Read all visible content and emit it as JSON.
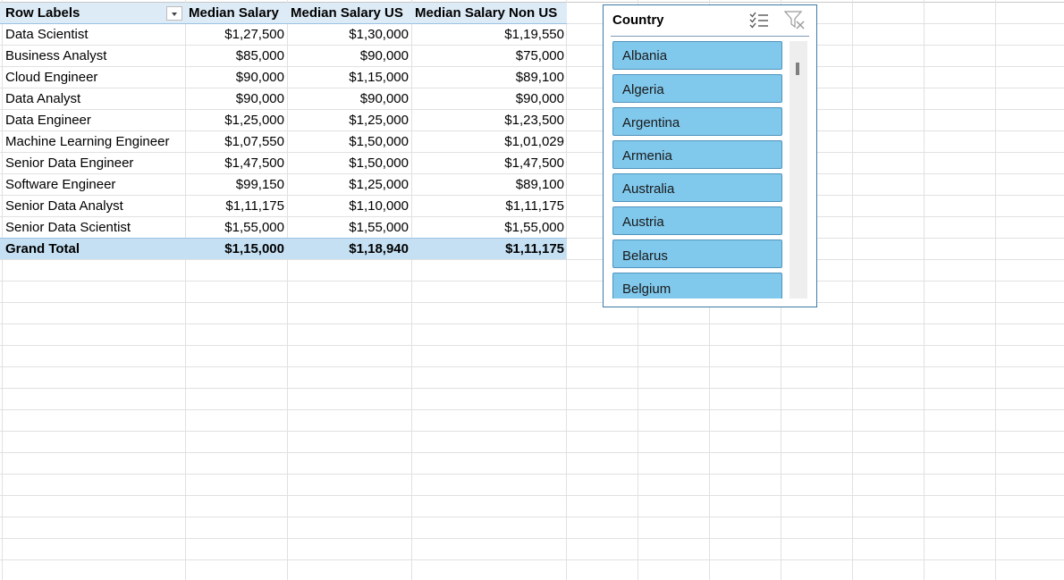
{
  "pivot": {
    "headers": {
      "row_labels": "Row Labels",
      "median_salary": "Median Salary",
      "median_salary_us": "Median Salary US",
      "median_salary_non_us": "Median Salary Non US"
    },
    "rows": [
      {
        "label": "Data Scientist",
        "median": "$1,27,500",
        "us": "$1,30,000",
        "non_us": "$1,19,550"
      },
      {
        "label": "Business Analyst",
        "median": "$85,000",
        "us": "$90,000",
        "non_us": "$75,000"
      },
      {
        "label": "Cloud Engineer",
        "median": "$90,000",
        "us": "$1,15,000",
        "non_us": "$89,100"
      },
      {
        "label": "Data Analyst",
        "median": "$90,000",
        "us": "$90,000",
        "non_us": "$90,000"
      },
      {
        "label": "Data Engineer",
        "median": "$1,25,000",
        "us": "$1,25,000",
        "non_us": "$1,23,500"
      },
      {
        "label": "Machine Learning Engineer",
        "median": "$1,07,550",
        "us": "$1,50,000",
        "non_us": "$1,01,029"
      },
      {
        "label": "Senior Data Engineer",
        "median": "$1,47,500",
        "us": "$1,50,000",
        "non_us": "$1,47,500"
      },
      {
        "label": "Software Engineer",
        "median": "$99,150",
        "us": "$1,25,000",
        "non_us": "$89,100"
      },
      {
        "label": "Senior Data Analyst",
        "median": "$1,11,175",
        "us": "$1,10,000",
        "non_us": "$1,11,175"
      },
      {
        "label": "Senior Data Scientist",
        "median": "$1,55,000",
        "us": "$1,55,000",
        "non_us": "$1,55,000"
      }
    ],
    "total": {
      "label": "Grand Total",
      "median": "$1,15,000",
      "us": "$1,18,940",
      "non_us": "$1,11,175"
    }
  },
  "slicer": {
    "title": "Country",
    "multiselect_icon": "multi-select-icon",
    "clear_filter_icon": "clear-filter-icon",
    "items": [
      "Albania",
      "Algeria",
      "Argentina",
      "Armenia",
      "Australia",
      "Austria",
      "Belarus",
      "Belgium"
    ]
  },
  "colors": {
    "pivot_header_bg": "#ddebf7",
    "slicer_item_bg": "#80c8ec",
    "slicer_border": "#3e7aa6"
  }
}
